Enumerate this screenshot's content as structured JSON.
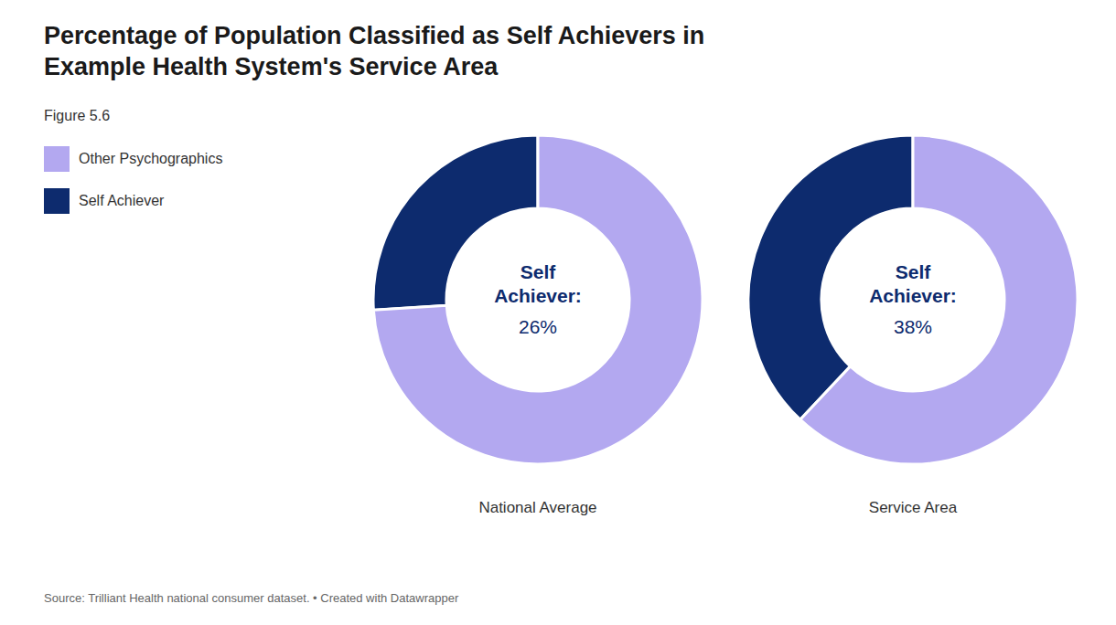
{
  "chart_data": [
    {
      "type": "pie",
      "title": "National Average",
      "categories": [
        "Self Achiever",
        "Other Psychographics"
      ],
      "values": [
        26,
        74
      ],
      "colors": [
        "#0d2b6e",
        "#b3a8f0"
      ],
      "annotations": [
        "Self",
        "Achiever:",
        "26%"
      ]
    },
    {
      "type": "pie",
      "title": "Service Area",
      "categories": [
        "Self Achiever",
        "Other Psychographics"
      ],
      "values": [
        38,
        62
      ],
      "colors": [
        "#0d2b6e",
        "#b3a8f0"
      ],
      "annotations": [
        "Self",
        "Achiever:",
        "38%"
      ]
    }
  ],
  "title": "Percentage of Population Classified as Self Achievers in\nExample Health System's Service Area",
  "subtitle": "Figure 5.6",
  "annotations": [
    "Source: Trilliant Health national consumer dataset. • Created with Datawrapper"
  ],
  "legend": "left"
}
